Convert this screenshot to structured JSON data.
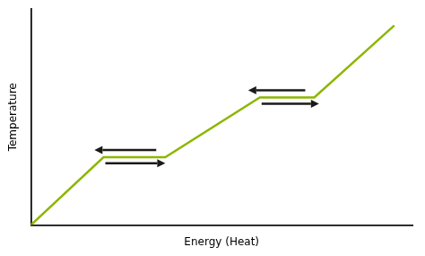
{
  "chart_data": {
    "type": "line",
    "xlabel": "Energy (Heat)",
    "ylabel": "Temperature",
    "x": [
      0.0,
      0.2,
      0.37,
      0.63,
      0.78,
      1.0
    ],
    "series": [
      {
        "color": "#8db600",
        "values": [
          0.0,
          0.33,
          0.33,
          0.62,
          0.62,
          0.97
        ]
      }
    ],
    "arrows": [
      {
        "x_start": 0.345,
        "x_end": 0.175,
        "y": 0.365,
        "color": "#1a1a1a"
      },
      {
        "x_start": 0.205,
        "x_end": 0.37,
        "y": 0.3,
        "color": "#1a1a1a"
      },
      {
        "x_start": 0.755,
        "x_end": 0.598,
        "y": 0.655,
        "color": "#1a1a1a"
      },
      {
        "x_start": 0.635,
        "x_end": 0.793,
        "y": 0.59,
        "color": "#1a1a1a"
      }
    ],
    "xlim": [
      0,
      1.05
    ],
    "ylim": [
      0,
      1.05
    ],
    "grid": false,
    "tick_labels": false
  }
}
